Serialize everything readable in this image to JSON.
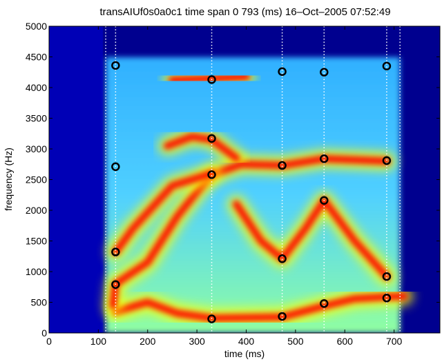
{
  "chart_data": {
    "type": "heatmap",
    "title": "transAIUf0s0a0c1 time span 0 793 (ms) 16–Oct–2005 07:52:49",
    "xlabel": "time (ms)",
    "ylabel": "frequency (Hz)",
    "xlim": [
      0,
      793
    ],
    "ylim": [
      0,
      5000
    ],
    "xticks": [
      0,
      100,
      200,
      300,
      400,
      500,
      600,
      700
    ],
    "yticks": [
      0,
      500,
      1000,
      1500,
      2000,
      2500,
      3000,
      3500,
      4000,
      4500,
      5000
    ],
    "grid": false,
    "colormap": "jet",
    "colormap_colors": [
      "#00008f",
      "#0000ff",
      "#0080ff",
      "#00ffff",
      "#80ff80",
      "#ffff00",
      "#ff8000",
      "#ff0000",
      "#800000"
    ],
    "marker_color": "#000000",
    "segment_color": "#ffffff",
    "segment_boundaries_ms": [
      115,
      135,
      330,
      473,
      558,
      685,
      712
    ],
    "formant_tracks": [
      {
        "points": [
          [
            135,
            350
          ],
          [
            200,
            500
          ],
          [
            260,
            320
          ],
          [
            330,
            240
          ],
          [
            473,
            260
          ],
          [
            558,
            440
          ],
          [
            620,
            560
          ],
          [
            685,
            590
          ],
          [
            720,
            600
          ]
        ]
      },
      {
        "points": [
          [
            130,
            450
          ],
          [
            135,
            800
          ],
          [
            200,
            1150
          ],
          [
            260,
            1900
          ],
          [
            300,
            2300
          ],
          [
            330,
            2580
          ],
          [
            390,
            2750
          ],
          [
            473,
            2730
          ],
          [
            558,
            2840
          ],
          [
            685,
            2800
          ]
        ]
      },
      {
        "points": [
          [
            135,
            1320
          ],
          [
            170,
            1700
          ],
          [
            250,
            2400
          ],
          [
            330,
            2600
          ]
        ]
      },
      {
        "points": [
          [
            380,
            2100
          ],
          [
            430,
            1500
          ],
          [
            473,
            1210
          ],
          [
            520,
            1700
          ],
          [
            558,
            2160
          ],
          [
            620,
            1500
          ],
          [
            685,
            920
          ]
        ]
      },
      {
        "points": [
          [
            240,
            3050
          ],
          [
            290,
            3200
          ],
          [
            330,
            3150
          ],
          [
            380,
            2850
          ]
        ]
      },
      {
        "points": [
          [
            250,
            4120
          ],
          [
            330,
            4150
          ],
          [
            400,
            4180
          ]
        ]
      }
    ],
    "markers": [
      [
        135,
        4360
      ],
      [
        135,
        2710
      ],
      [
        135,
        1320
      ],
      [
        135,
        790
      ],
      [
        330,
        4130
      ],
      [
        330,
        3170
      ],
      [
        330,
        2580
      ],
      [
        330,
        230
      ],
      [
        473,
        4260
      ],
      [
        473,
        2730
      ],
      [
        473,
        1210
      ],
      [
        473,
        270
      ],
      [
        558,
        4250
      ],
      [
        558,
        2840
      ],
      [
        558,
        2160
      ],
      [
        558,
        480
      ],
      [
        685,
        4350
      ],
      [
        685,
        2810
      ],
      [
        685,
        920
      ],
      [
        685,
        570
      ]
    ]
  }
}
